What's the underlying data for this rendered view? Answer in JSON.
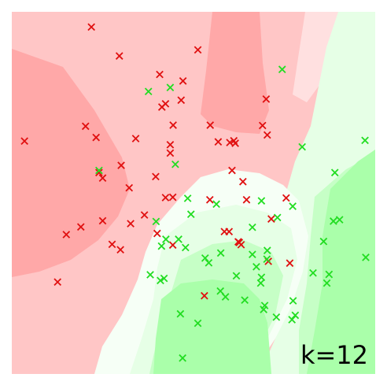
{
  "chart_data": {
    "type": "scatter",
    "title": "",
    "xlabel": "",
    "ylabel": "",
    "xlim": [
      0,
      1
    ],
    "ylim": [
      0,
      1
    ],
    "grid": false,
    "annotation": "k=12",
    "marker": "x",
    "colors": {
      "red_points": "#e01010",
      "green_points": "#22dd22",
      "red_region_strong": "#ffa8a8",
      "red_region_mid": "#ffc6c6",
      "red_region_light": "#ffe0e0",
      "neutral_region": "#f6fff6",
      "green_region_light": "#e6ffe6",
      "green_region_mid": "#c6ffc6",
      "green_region_strong": "#aaffaa"
    },
    "series": [
      {
        "class": "red",
        "points": [
          [
            0.219,
            0.958
          ],
          [
            0.296,
            0.878
          ],
          [
            0.512,
            0.895
          ],
          [
            0.407,
            0.827
          ],
          [
            0.471,
            0.809
          ],
          [
            0.423,
            0.746
          ],
          [
            0.466,
            0.756
          ],
          [
            0.7,
            0.759
          ],
          [
            0.413,
            0.737
          ],
          [
            0.203,
            0.684
          ],
          [
            0.232,
            0.653
          ],
          [
            0.341,
            0.65
          ],
          [
            0.444,
            0.687
          ],
          [
            0.546,
            0.687
          ],
          [
            0.69,
            0.686
          ],
          [
            0.703,
            0.66
          ],
          [
            0.436,
            0.633
          ],
          [
            0.436,
            0.61
          ],
          [
            0.568,
            0.641
          ],
          [
            0.6,
            0.639
          ],
          [
            0.615,
            0.637
          ],
          [
            0.611,
            0.644
          ],
          [
            0.035,
            0.643
          ],
          [
            0.301,
            0.576
          ],
          [
            0.24,
            0.556
          ],
          [
            0.25,
            0.541
          ],
          [
            0.396,
            0.545
          ],
          [
            0.606,
            0.562
          ],
          [
            0.636,
            0.531
          ],
          [
            0.323,
            0.514
          ],
          [
            0.423,
            0.487
          ],
          [
            0.443,
            0.488
          ],
          [
            0.545,
            0.481
          ],
          [
            0.646,
            0.481
          ],
          [
            0.755,
            0.486
          ],
          [
            0.365,
            0.439
          ],
          [
            0.714,
            0.428
          ],
          [
            0.25,
            0.423
          ],
          [
            0.327,
            0.415
          ],
          [
            0.19,
            0.406
          ],
          [
            0.15,
            0.385
          ],
          [
            0.4,
            0.388
          ],
          [
            0.585,
            0.393
          ],
          [
            0.598,
            0.393
          ],
          [
            0.276,
            0.358
          ],
          [
            0.299,
            0.343
          ],
          [
            0.623,
            0.365
          ],
          [
            0.631,
            0.357
          ],
          [
            0.626,
            0.363
          ],
          [
            0.443,
            0.356
          ],
          [
            0.706,
            0.311
          ],
          [
            0.765,
            0.306
          ],
          [
            0.126,
            0.254
          ],
          [
            0.53,
            0.216
          ]
        ]
      },
      {
        "class": "green",
        "points": [
          [
            0.744,
            0.841
          ],
          [
            0.376,
            0.78
          ],
          [
            0.436,
            0.791
          ],
          [
            0.799,
            0.627
          ],
          [
            0.972,
            0.645
          ],
          [
            0.24,
            0.562
          ],
          [
            0.889,
            0.556
          ],
          [
            0.45,
            0.579
          ],
          [
            0.484,
            0.485
          ],
          [
            0.563,
            0.469
          ],
          [
            0.687,
            0.478
          ],
          [
            0.773,
            0.463
          ],
          [
            0.493,
            0.441
          ],
          [
            0.731,
            0.432
          ],
          [
            0.902,
            0.426
          ],
          [
            0.885,
            0.422
          ],
          [
            0.397,
            0.421
          ],
          [
            0.662,
            0.405
          ],
          [
            0.424,
            0.372
          ],
          [
            0.459,
            0.372
          ],
          [
            0.412,
            0.353
          ],
          [
            0.858,
            0.366
          ],
          [
            0.575,
            0.334
          ],
          [
            0.662,
            0.33
          ],
          [
            0.703,
            0.341
          ],
          [
            0.478,
            0.349
          ],
          [
            0.532,
            0.32
          ],
          [
            0.542,
            0.307
          ],
          [
            0.702,
            0.317
          ],
          [
            0.974,
            0.322
          ],
          [
            0.673,
            0.296
          ],
          [
            0.873,
            0.275
          ],
          [
            0.829,
            0.279
          ],
          [
            0.381,
            0.274
          ],
          [
            0.419,
            0.264
          ],
          [
            0.409,
            0.258
          ],
          [
            0.618,
            0.271
          ],
          [
            0.687,
            0.267
          ],
          [
            0.685,
            0.251
          ],
          [
            0.867,
            0.251
          ],
          [
            0.574,
            0.229
          ],
          [
            0.588,
            0.213
          ],
          [
            0.641,
            0.204
          ],
          [
            0.696,
            0.189
          ],
          [
            0.774,
            0.202
          ],
          [
            0.693,
            0.178
          ],
          [
            0.78,
            0.162
          ],
          [
            0.728,
            0.157
          ],
          [
            0.464,
            0.166
          ],
          [
            0.512,
            0.14
          ],
          [
            0.771,
            0.15
          ],
          [
            0.47,
            0.044
          ]
        ]
      }
    ]
  }
}
